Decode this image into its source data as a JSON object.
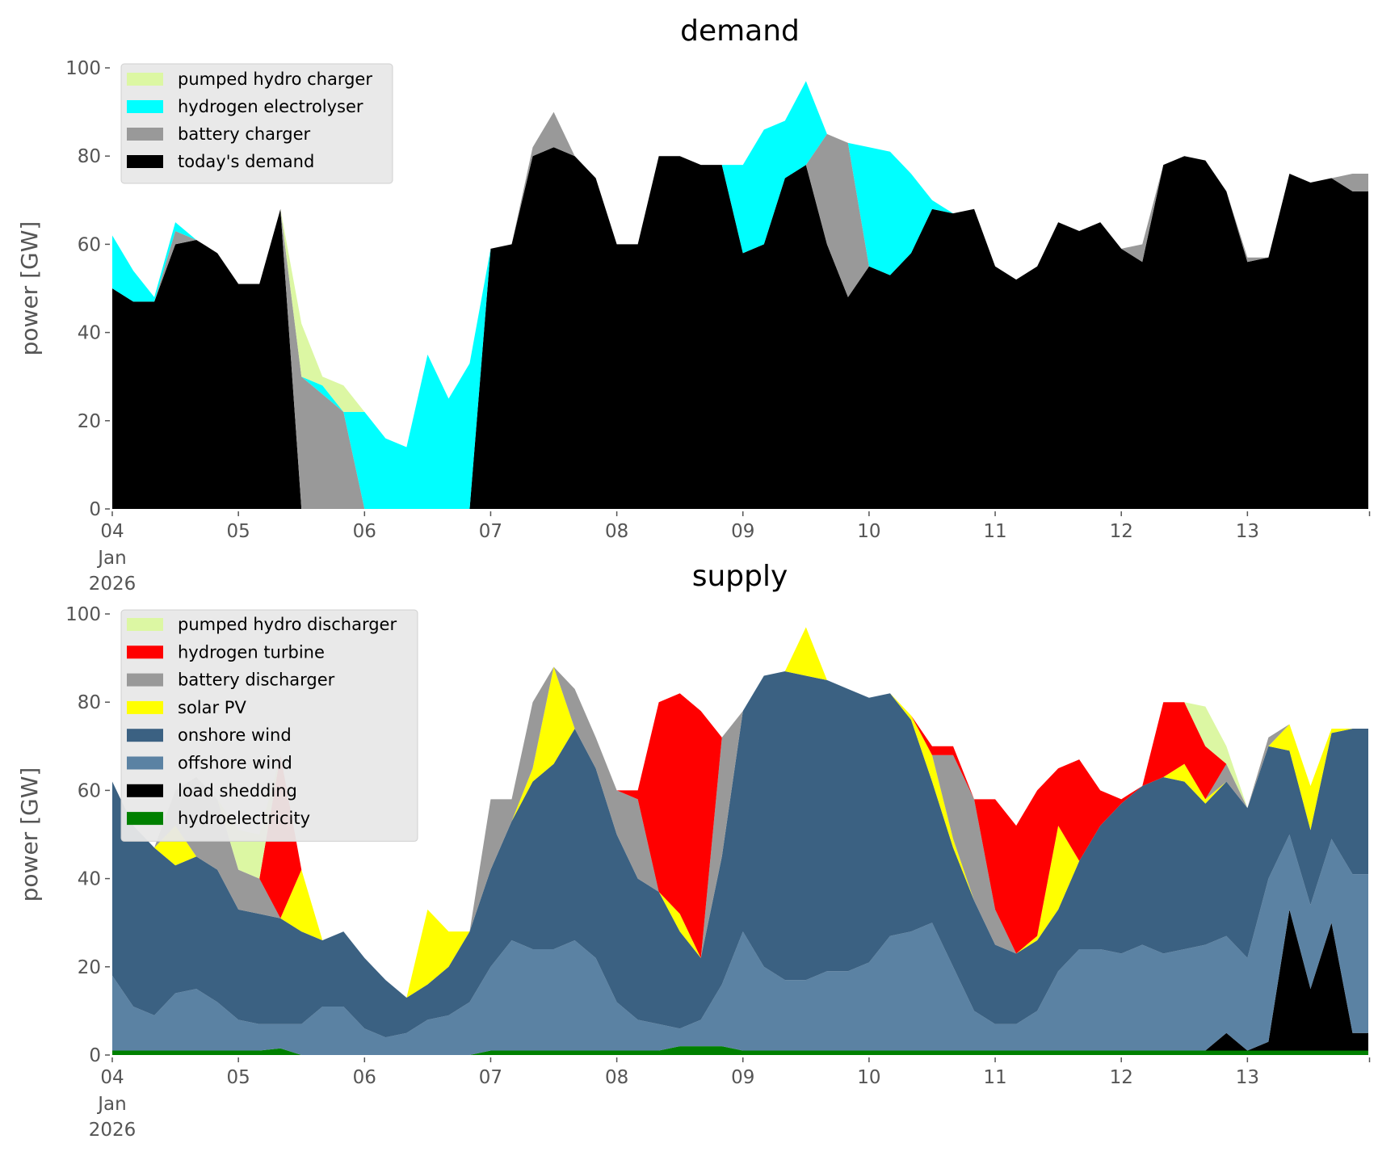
{
  "chart_data": [
    {
      "type": "area",
      "stacked": true,
      "title": "demand",
      "xlabel": "",
      "ylabel": "power [GW]",
      "ylim": [
        0,
        100
      ],
      "yticks": [
        0,
        20,
        40,
        60,
        80,
        100
      ],
      "x_start": "2026-01-04 00:00",
      "x_step_hours": 4,
      "xlim_hours": [
        0,
        239
      ],
      "xticks": [
        "04",
        "05",
        "06",
        "07",
        "08",
        "09",
        "10",
        "11",
        "12",
        "13"
      ],
      "xtick_sub": [
        "Jan",
        "2026"
      ],
      "legend_position": "top-left",
      "series": [
        {
          "name": "today's demand",
          "color": "#000000",
          "values": [
            50,
            47,
            47,
            60,
            61,
            58,
            51,
            51,
            68,
            0,
            0,
            0,
            0,
            0,
            0,
            0,
            0,
            0,
            59,
            60,
            80,
            82,
            80,
            75,
            60,
            60,
            80,
            80,
            78,
            78,
            58,
            60,
            75,
            78,
            60,
            48,
            55,
            53,
            58,
            68,
            67,
            68,
            55,
            52,
            55,
            65,
            63,
            65,
            59,
            56,
            78,
            80,
            79,
            72,
            56,
            57,
            76,
            74,
            75,
            72
          ]
        },
        {
          "name": "battery charger",
          "color": "#999999",
          "values": [
            0,
            0,
            0,
            3,
            0,
            0,
            0,
            0,
            0,
            30,
            26,
            22,
            0,
            0,
            0,
            0,
            0,
            0,
            0,
            0,
            2,
            8,
            0,
            0,
            0,
            0,
            0,
            0,
            0,
            0,
            0,
            0,
            0,
            0,
            25,
            35,
            0,
            0,
            0,
            0,
            0,
            0,
            0,
            0,
            0,
            0,
            0,
            0,
            0,
            4,
            0,
            0,
            0,
            0,
            1,
            0,
            0,
            0,
            0,
            4
          ]
        },
        {
          "name": "hydrogen electrolyser",
          "color": "#00ffff",
          "values": [
            12,
            7,
            1,
            2,
            0,
            0,
            0,
            0,
            0,
            0,
            2,
            0,
            22,
            16,
            14,
            35,
            25,
            33,
            0,
            0,
            0,
            0,
            0,
            0,
            0,
            0,
            0,
            0,
            0,
            0,
            20,
            26,
            13,
            19,
            0,
            0,
            27,
            28,
            18,
            2,
            0,
            0,
            0,
            0,
            0,
            0,
            0,
            0,
            0,
            0,
            0,
            0,
            0,
            0,
            0,
            0,
            0,
            0,
            0,
            0
          ]
        },
        {
          "name": "pumped hydro charger",
          "color": "#dcf7a3",
          "values": [
            0,
            0,
            0,
            0,
            0,
            0,
            0,
            0,
            0,
            12,
            2,
            6,
            0,
            0,
            0,
            0,
            0,
            0,
            0,
            0,
            0,
            0,
            0,
            0,
            0,
            0,
            0,
            0,
            0,
            0,
            0,
            0,
            0,
            0,
            0,
            0,
            0,
            0,
            0,
            0,
            0,
            0,
            0,
            0,
            0,
            0,
            0,
            0,
            0,
            0,
            0,
            0,
            0,
            0,
            0,
            0,
            0,
            0,
            0,
            0
          ]
        }
      ]
    },
    {
      "type": "area",
      "stacked": true,
      "title": "supply",
      "xlabel": "",
      "ylabel": "power [GW]",
      "ylim": [
        0,
        100
      ],
      "yticks": [
        0,
        20,
        40,
        60,
        80,
        100
      ],
      "x_start": "2026-01-04 00:00",
      "x_step_hours": 4,
      "xlim_hours": [
        0,
        239
      ],
      "xticks": [
        "04",
        "05",
        "06",
        "07",
        "08",
        "09",
        "10",
        "11",
        "12",
        "13"
      ],
      "xtick_sub": [
        "Jan",
        "2026"
      ],
      "legend_position": "top-left",
      "series": [
        {
          "name": "hydroelectricity",
          "color": "#008000",
          "values": [
            1,
            1,
            1,
            1,
            1,
            1,
            1,
            1,
            1.5,
            0,
            0,
            0,
            0,
            0,
            0,
            0,
            0,
            0,
            1,
            1,
            1,
            1,
            1,
            1,
            1,
            1,
            1,
            2,
            2,
            2,
            1,
            1,
            1,
            1,
            1,
            1,
            1,
            1,
            1,
            1,
            1,
            1,
            1,
            1,
            1,
            1,
            1,
            1,
            1,
            1,
            1,
            1,
            1,
            1,
            1,
            1,
            1,
            1,
            1,
            1
          ]
        },
        {
          "name": "load shedding",
          "color": "#000000",
          "values": [
            0,
            0,
            0,
            0,
            0,
            0,
            0,
            0,
            0,
            0,
            0,
            0,
            0,
            0,
            0,
            0,
            0,
            0,
            0,
            0,
            0,
            0,
            0,
            0,
            0,
            0,
            0,
            0,
            0,
            0,
            0,
            0,
            0,
            0,
            0,
            0,
            0,
            0,
            0,
            0,
            0,
            0,
            0,
            0,
            0,
            0,
            0,
            0,
            0,
            0,
            0,
            0,
            0,
            4,
            0,
            2,
            32,
            14,
            29,
            4
          ]
        },
        {
          "name": "offshore wind",
          "color": "#5b82a3",
          "values": [
            17,
            10,
            8,
            13,
            14,
            11,
            7,
            6,
            5.5,
            7,
            11,
            11,
            6,
            4,
            5,
            8,
            9,
            12,
            19,
            25,
            23,
            23,
            25,
            21,
            11,
            7,
            6,
            4,
            6,
            14,
            27,
            19,
            16,
            16,
            18,
            18,
            20,
            26,
            27,
            29,
            19,
            9,
            6,
            6,
            9,
            18,
            23,
            23,
            22,
            24,
            22,
            23,
            24,
            22,
            21,
            37,
            17,
            19,
            19,
            36
          ]
        },
        {
          "name": "onshore wind",
          "color": "#3b6182",
          "values": [
            44,
            41,
            38,
            29,
            30,
            30,
            25,
            25,
            24,
            21,
            15,
            17,
            16,
            13,
            8,
            8,
            11,
            16,
            22,
            27,
            38,
            42,
            48,
            43,
            38,
            32,
            30,
            22,
            14,
            29,
            50,
            66,
            70,
            69,
            66,
            64,
            60,
            55,
            48,
            32,
            27,
            25,
            18,
            16,
            16,
            14,
            20,
            28,
            34,
            36,
            40,
            38,
            32,
            35,
            34,
            30,
            19,
            17,
            24,
            33
          ]
        },
        {
          "name": "solar PV",
          "color": "#ffff00",
          "values": [
            0,
            0,
            0,
            9,
            0,
            0,
            0,
            0,
            0,
            14,
            0,
            0,
            0,
            0,
            0,
            17,
            8,
            0,
            0,
            0,
            3,
            22,
            0,
            0,
            0,
            0,
            0,
            4,
            0,
            0,
            0,
            0,
            0,
            11,
            0,
            0,
            0,
            0,
            1,
            6,
            2,
            0,
            0,
            0,
            1,
            19,
            0,
            0,
            0,
            0,
            0,
            4,
            1,
            0,
            0,
            0,
            6,
            10,
            1,
            0
          ]
        },
        {
          "name": "battery discharger",
          "color": "#999999",
          "values": [
            0,
            0,
            0,
            8,
            18,
            16,
            9,
            8,
            0,
            0,
            0,
            0,
            0,
            0,
            0,
            0,
            0,
            0,
            16,
            5,
            15,
            0,
            9,
            7,
            10,
            18,
            0,
            0,
            0,
            27,
            0,
            0,
            0,
            0,
            0,
            0,
            0,
            0,
            0,
            0,
            19,
            23,
            8,
            0,
            0,
            0,
            0,
            0,
            0,
            0,
            0,
            0,
            0,
            4,
            0,
            2,
            0,
            0,
            0,
            0
          ]
        },
        {
          "name": "hydrogen turbine",
          "color": "#ff0000",
          "values": [
            0,
            0,
            0,
            0,
            0,
            0,
            0,
            0,
            37,
            0,
            0,
            0,
            0,
            0,
            0,
            0,
            0,
            0,
            0,
            0,
            0,
            0,
            0,
            0,
            0,
            2,
            43,
            50,
            56,
            0,
            0,
            0,
            0,
            0,
            0,
            0,
            0,
            0,
            0,
            2,
            2,
            0,
            25,
            29,
            33,
            13,
            23,
            8,
            1,
            0,
            17,
            14,
            12,
            0,
            0,
            0,
            0,
            0,
            0,
            0
          ]
        },
        {
          "name": "pumped hydro discharger",
          "color": "#dcf7a3",
          "values": [
            0,
            0,
            0,
            0,
            0,
            0,
            9,
            10,
            0,
            0,
            0,
            0,
            0,
            0,
            0,
            0,
            0,
            0,
            0,
            0,
            0,
            0,
            0,
            0,
            0,
            0,
            0,
            0,
            0,
            0,
            0,
            0,
            0,
            0,
            0,
            0,
            0,
            0,
            0,
            0,
            0,
            0,
            0,
            0,
            0,
            0,
            0,
            0,
            0,
            0,
            0,
            0,
            9,
            4,
            0,
            0,
            0,
            0,
            0,
            0
          ]
        }
      ],
      "legend_order": [
        "pumped hydro discharger",
        "hydrogen turbine",
        "battery discharger",
        "solar PV",
        "onshore wind",
        "offshore wind",
        "load shedding",
        "hydroelectricity"
      ]
    }
  ]
}
